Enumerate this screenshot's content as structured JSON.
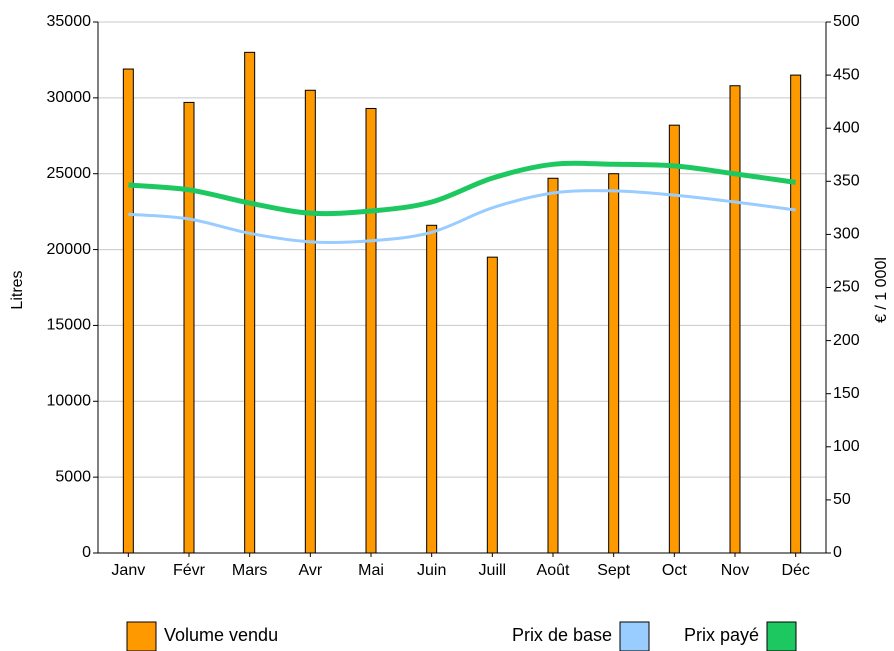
{
  "chart_data": {
    "type": "combo",
    "categories": [
      "Janv",
      "Févr",
      "Mars",
      "Avr",
      "Mai",
      "Juin",
      "Juill",
      "Août",
      "Sept",
      "Oct",
      "Nov",
      "Déc"
    ],
    "ylabel": "Litres",
    "y2label": "€ / 1 000l",
    "ylim": [
      0,
      35000
    ],
    "yticks": [
      0,
      5000,
      10000,
      15000,
      20000,
      25000,
      30000,
      35000
    ],
    "y2lim": [
      0,
      500
    ],
    "y2ticks": [
      0,
      50,
      100,
      150,
      200,
      250,
      300,
      350,
      400,
      450,
      500
    ],
    "grid": true,
    "series": [
      {
        "name": "Volume vendu",
        "type": "bar",
        "color": "#ff9900",
        "values": [
          31900,
          29700,
          33000,
          30500,
          29300,
          21600,
          19500,
          24700,
          25000,
          28200,
          30800,
          31500
        ]
      },
      {
        "name": "Prix de base",
        "type": "line",
        "axis": "y2",
        "color": "#99ccff",
        "values": [
          319,
          314.5,
          301,
          293,
          294,
          302,
          325,
          339,
          341,
          337,
          330.5,
          323
        ]
      },
      {
        "name": "Prix payé",
        "type": "line",
        "axis": "y2",
        "color": "#1ec860",
        "values": [
          346.5,
          342,
          329.5,
          320,
          322,
          330.5,
          353,
          366,
          366,
          364.5,
          357,
          349
        ]
      }
    ]
  }
}
